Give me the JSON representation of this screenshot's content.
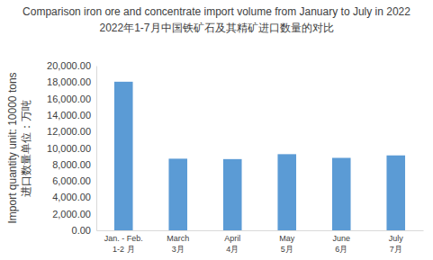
{
  "chart_data": {
    "type": "bar",
    "title": "Comparison iron ore and concentrate import volume from January to July in 2022",
    "subtitle": "2022年1-7月中国铁矿石及其精矿进口数量的对比",
    "ylabel": [
      "Import quantity unit: 10000 tons",
      "进口数量单位：万吨"
    ],
    "categories": [
      "Jan. - Feb.\n1-2 月",
      "March\n3月",
      "April\n4月",
      "May\n5月",
      "June\n6月",
      "July\n7月"
    ],
    "values": [
      18050,
      8700,
      8650,
      9250,
      8800,
      9100
    ],
    "color": "#5b9bd5",
    "ylim": [
      0,
      20000
    ],
    "yticks": [
      {
        "value": 0,
        "label": "0.00"
      },
      {
        "value": 2000,
        "label": "2,000.00"
      },
      {
        "value": 4000,
        "label": "4,000.00"
      },
      {
        "value": 6000,
        "label": "6,000.00"
      },
      {
        "value": 8000,
        "label": "8,000.00"
      },
      {
        "value": 10000,
        "label": "10,000.00"
      },
      {
        "value": 12000,
        "label": "12,000.00"
      },
      {
        "value": 14000,
        "label": "14,000.00"
      },
      {
        "value": 16000,
        "label": "16,000.00"
      },
      {
        "value": 18000,
        "label": "18,000.00"
      },
      {
        "value": 20000,
        "label": "20,000.00"
      }
    ],
    "grid": false
  }
}
